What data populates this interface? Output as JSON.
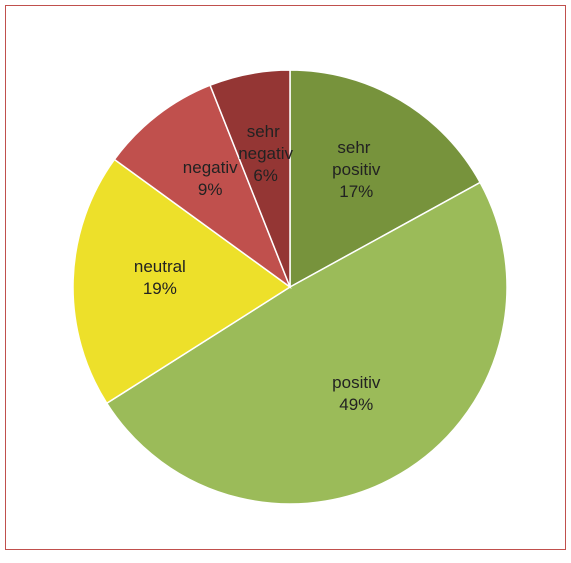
{
  "chart_data": {
    "type": "pie",
    "categories": [
      "sehr positiv",
      "positiv",
      "neutral",
      "negativ",
      "sehr negativ"
    ],
    "values": [
      17,
      49,
      19,
      9,
      6
    ],
    "value_labels": [
      "17%",
      "49%",
      "19%",
      "9%",
      "6%"
    ],
    "colors": [
      "#77933c",
      "#9bbb59",
      "#ede02a",
      "#c0504d",
      "#943634"
    ]
  }
}
